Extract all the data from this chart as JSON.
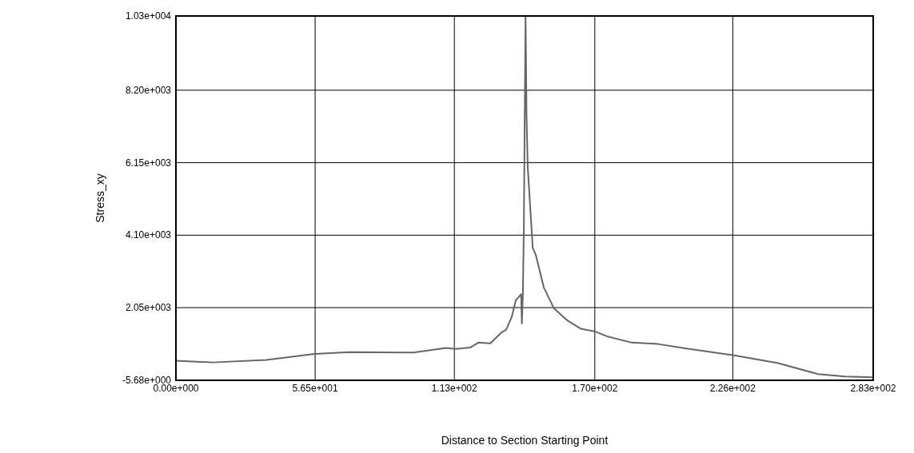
{
  "chart_data": {
    "type": "line",
    "xlabel": "Distance to Section Starting Point",
    "ylabel": "Stress_xy",
    "xlim": [
      0,
      283
    ],
    "ylim": [
      -5.68,
      10300
    ],
    "xticks": [
      {
        "value": 0,
        "label": "0.00e+000"
      },
      {
        "value": 56.5,
        "label": "5.65e+001"
      },
      {
        "value": 113,
        "label": "1.13e+002"
      },
      {
        "value": 170,
        "label": "1.70e+002"
      },
      {
        "value": 226,
        "label": "2.26e+002"
      },
      {
        "value": 283,
        "label": "2.83e+002"
      }
    ],
    "yticks": [
      {
        "value": -5.68,
        "label": "-5.68e+000"
      },
      {
        "value": 2050,
        "label": "2.05e+003"
      },
      {
        "value": 4100,
        "label": "4.10e+003"
      },
      {
        "value": 6150,
        "label": "6.15e+003"
      },
      {
        "value": 8200,
        "label": "8.20e+003"
      },
      {
        "value": 10300,
        "label": "1.03e+004"
      }
    ],
    "grid": true,
    "marker": "none",
    "line_style": "solid",
    "series": [
      {
        "color": "#666666",
        "x": [
          0,
          15,
          36.7,
          56.2,
          70.4,
          96.4,
          109.7,
          113.6,
          119.4,
          122.7,
          127.6,
          132,
          134,
          136.3,
          137.9,
          140.1,
          140.4,
          140.8,
          141.2,
          141.9,
          142.1,
          142.3,
          142.8,
          144.8,
          146.1,
          149.3,
          153.5,
          159,
          164.4,
          169.8,
          175.3,
          185,
          195.7,
          206.7,
          226.5,
          244.4,
          260.6,
          271.6,
          283
        ],
        "values": [
          550,
          500,
          570,
          740,
          790,
          780,
          910,
          880,
          920,
          1060,
          1040,
          1340,
          1420,
          1790,
          2250,
          2430,
          1600,
          2400,
          4280,
          10300,
          8900,
          7450,
          6010,
          3750,
          3530,
          2620,
          2020,
          1680,
          1450,
          1380,
          1230,
          1060,
          1020,
          900,
          700,
          480,
          170,
          100,
          80
        ]
      }
    ]
  }
}
